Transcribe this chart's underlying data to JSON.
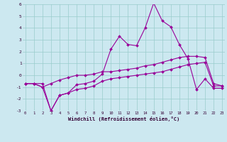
{
  "xlabel": "Windchill (Refroidissement éolien,°C)",
  "bg_color": "#cce8f0",
  "grid_color": "#99cccc",
  "line_color": "#990099",
  "x_min": 0,
  "x_max": 23,
  "y_min": -3,
  "y_max": 6,
  "hours": [
    0,
    1,
    2,
    3,
    4,
    5,
    6,
    7,
    8,
    9,
    10,
    11,
    12,
    13,
    14,
    15,
    16,
    17,
    18,
    19,
    20,
    21,
    22,
    23
  ],
  "line1": [
    -0.7,
    -0.7,
    -0.7,
    -3.0,
    -1.7,
    -1.5,
    -0.8,
    -0.7,
    -0.5,
    0.1,
    2.2,
    3.3,
    2.6,
    2.5,
    4.0,
    6.1,
    4.6,
    4.1,
    2.6,
    1.4,
    -1.2,
    -0.3,
    -1.1,
    -1.1
  ],
  "line2": [
    -0.7,
    -0.7,
    -1.0,
    -0.7,
    -0.4,
    -0.2,
    0.0,
    0.0,
    0.1,
    0.3,
    0.3,
    0.4,
    0.5,
    0.6,
    0.8,
    0.9,
    1.1,
    1.3,
    1.5,
    1.6,
    1.6,
    1.5,
    -0.7,
    -0.9
  ],
  "line3": [
    -0.7,
    -0.7,
    -1.0,
    -3.0,
    -1.7,
    -1.5,
    -1.2,
    -1.1,
    -0.9,
    -0.5,
    -0.3,
    -0.2,
    -0.1,
    0.0,
    0.1,
    0.2,
    0.3,
    0.5,
    0.7,
    0.9,
    1.0,
    1.1,
    -0.9,
    -0.9
  ]
}
